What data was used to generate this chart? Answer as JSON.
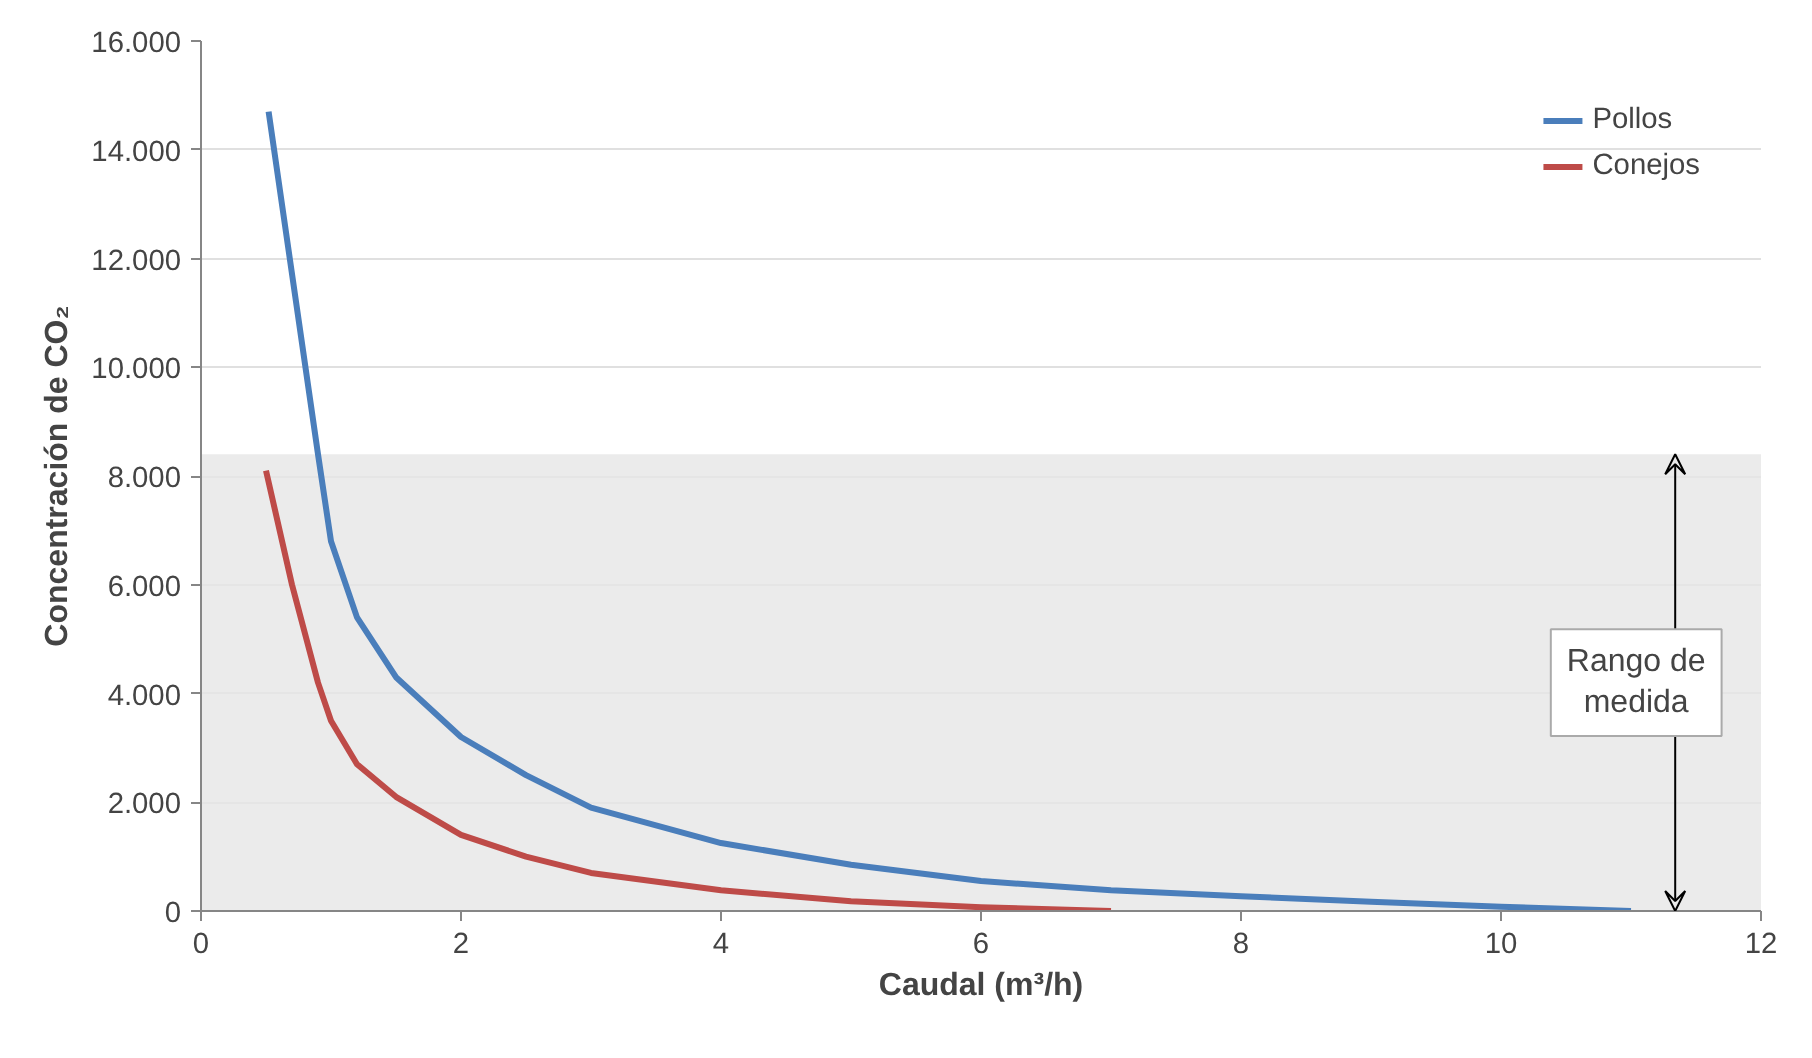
{
  "chart_data": {
    "type": "line",
    "xlabel": "Caudal (m³/h)",
    "ylabel": "Concentración de CO₂",
    "xlim": [
      0,
      12
    ],
    "xticks": [
      0,
      2,
      4,
      6,
      8,
      10,
      12
    ],
    "ylim": [
      0,
      16000
    ],
    "yticks": [
      {
        "value": 0,
        "label": "0"
      },
      {
        "value": 2000,
        "label": "2.000"
      },
      {
        "value": 4000,
        "label": "4.000"
      },
      {
        "value": 6000,
        "label": "6.000"
      },
      {
        "value": 8000,
        "label": "8.000"
      },
      {
        "value": 10000,
        "label": "10.000"
      },
      {
        "value": 12000,
        "label": "12.000"
      },
      {
        "value": 14000,
        "label": "14.000"
      },
      {
        "value": 16000,
        "label": "16.000"
      }
    ],
    "series": [
      {
        "name": "Pollos",
        "color": "#4a7ebb",
        "x": [
          0.52,
          0.9,
          1.0,
          1.2,
          1.5,
          2,
          2.5,
          3,
          4,
          5,
          6,
          7,
          8,
          9,
          10,
          11
        ],
        "values": [
          14700,
          8400,
          6800,
          5400,
          4300,
          3200,
          2500,
          1900,
          1250,
          850,
          550,
          380,
          270,
          170,
          80,
          0
        ]
      },
      {
        "name": "Conejos",
        "color": "#be4b48",
        "x": [
          0.5,
          0.7,
          0.9,
          1.0,
          1.2,
          1.5,
          2,
          2.5,
          3,
          4,
          5,
          6,
          7
        ],
        "values": [
          8100,
          6000,
          4200,
          3500,
          2700,
          2100,
          1400,
          1000,
          700,
          380,
          180,
          70,
          0
        ]
      }
    ],
    "bands": [
      {
        "axis": "y",
        "from": 0,
        "to": 8400,
        "label": "Rango de medida",
        "color": "#e6e6e6"
      }
    ],
    "grid": "y",
    "legend": "top right",
    "line_style": "solid",
    "marker": "none"
  }
}
